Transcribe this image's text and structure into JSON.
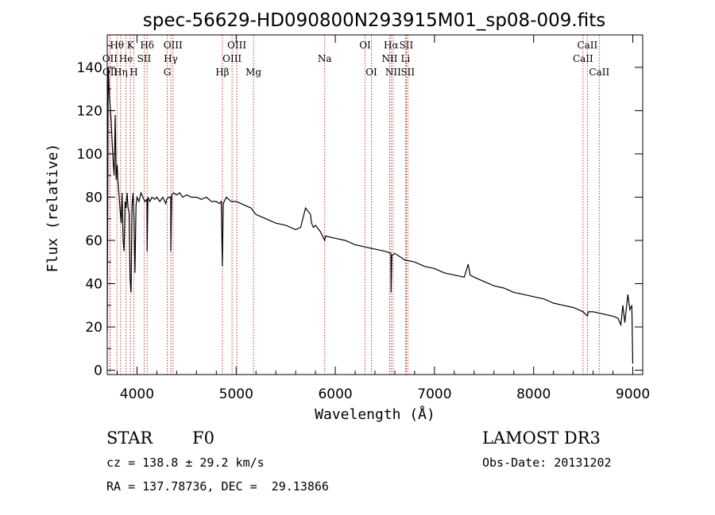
{
  "chart_data": {
    "type": "line",
    "title": "spec-56629-HD090800N293915M01_sp08-009.fits",
    "xlabel": "Wavelength (Å)",
    "ylabel": "Flux (relative)",
    "xlim": [
      3700,
      9100
    ],
    "ylim": [
      -2,
      155
    ],
    "xticks": [
      4000,
      5000,
      6000,
      7000,
      8000,
      9000
    ],
    "yticks": [
      0,
      20,
      40,
      60,
      80,
      100,
      120,
      140
    ],
    "grid": false,
    "series": [
      {
        "name": "flux",
        "x": [
          3700,
          3710,
          3720,
          3730,
          3740,
          3750,
          3760,
          3770,
          3780,
          3790,
          3800,
          3810,
          3820,
          3830,
          3840,
          3850,
          3860,
          3870,
          3880,
          3890,
          3900,
          3910,
          3920,
          3930,
          3940,
          3950,
          3960,
          3970,
          3980,
          3990,
          4000,
          4020,
          4040,
          4060,
          4080,
          4100,
          4102,
          4110,
          4130,
          4150,
          4180,
          4200,
          4230,
          4260,
          4290,
          4300,
          4320,
          4340,
          4341,
          4350,
          4370,
          4400,
          4430,
          4460,
          4500,
          4550,
          4600,
          4650,
          4700,
          4750,
          4800,
          4830,
          4850,
          4861,
          4870,
          4900,
          4950,
          5000,
          5050,
          5100,
          5150,
          5200,
          5300,
          5400,
          5500,
          5600,
          5650,
          5700,
          5750,
          5760,
          5780,
          5800,
          5850,
          5893,
          5900,
          6000,
          6100,
          6200,
          6300,
          6400,
          6500,
          6560,
          6563,
          6570,
          6600,
          6700,
          6800,
          6900,
          7000,
          7100,
          7200,
          7300,
          7340,
          7360,
          7400,
          7500,
          7600,
          7700,
          7800,
          7900,
          8000,
          8100,
          8200,
          8300,
          8400,
          8500,
          8542,
          8550,
          8600,
          8700,
          8800,
          8850,
          8880,
          8900,
          8920,
          8950,
          8970,
          8990,
          9000
        ],
        "values": [
          18,
          140,
          128,
          122,
          115,
          105,
          96,
          90,
          118,
          88,
          95,
          86,
          80,
          74,
          68,
          82,
          60,
          55,
          78,
          75,
          82,
          75,
          73,
          42,
          36,
          76,
          82,
          70,
          45,
          76,
          80,
          78,
          82,
          80,
          78,
          79,
          55,
          80,
          78,
          80,
          79,
          80,
          78,
          80,
          77,
          79,
          80,
          80,
          55,
          81,
          82,
          81,
          82,
          80,
          81,
          80,
          80,
          79,
          80,
          78,
          78,
          77,
          78,
          48,
          77,
          80,
          78,
          78,
          77,
          76,
          75,
          72,
          70,
          68,
          67,
          65,
          66,
          75,
          72,
          68,
          66,
          67,
          64,
          60,
          62,
          61,
          60,
          58,
          57,
          56,
          55,
          54,
          36,
          53,
          54,
          51,
          50,
          48,
          47,
          45,
          44,
          43,
          49,
          44,
          43,
          41,
          39,
          38,
          36,
          35,
          34,
          33,
          31,
          30,
          29,
          27,
          25,
          27,
          27,
          26,
          25,
          24,
          21,
          30,
          22,
          35,
          28,
          30,
          3
        ]
      }
    ],
    "spectral_lines": [
      {
        "label": "Hθ",
        "x": 3798,
        "row": 1
      },
      {
        "label": "OII",
        "x": 3727,
        "row": 2
      },
      {
        "label": "OII",
        "x": 3729,
        "row": 3
      },
      {
        "label": "Hη",
        "x": 3835,
        "row": 3
      },
      {
        "label": "He",
        "x": 3889,
        "row": 2
      },
      {
        "label": "K",
        "x": 3934,
        "row": 1
      },
      {
        "label": "H",
        "x": 3968,
        "row": 3
      },
      {
        "label": "SII",
        "x": 4072,
        "row": 2
      },
      {
        "label": "Hδ",
        "x": 4102,
        "row": 1
      },
      {
        "label": "OIII",
        "x": 4363,
        "row": 1
      },
      {
        "label": "Hγ",
        "x": 4341,
        "row": 2
      },
      {
        "label": "G",
        "x": 4305,
        "row": 3
      },
      {
        "label": "Hβ",
        "x": 4861,
        "row": 3
      },
      {
        "label": "OIII",
        "x": 5007,
        "row": 1
      },
      {
        "label": "OIII",
        "x": 4959,
        "row": 2
      },
      {
        "label": "Mg",
        "x": 5175,
        "row": 3
      },
      {
        "label": "Na",
        "x": 5893,
        "row": 2
      },
      {
        "label": "OI",
        "x": 6300,
        "row": 1
      },
      {
        "label": "OI",
        "x": 6364,
        "row": 3
      },
      {
        "label": "Hα",
        "x": 6563,
        "row": 1
      },
      {
        "label": "NII",
        "x": 6548,
        "row": 2
      },
      {
        "label": "NII",
        "x": 6583,
        "row": 3
      },
      {
        "label": "SII",
        "x": 6716,
        "row": 1
      },
      {
        "label": "Li",
        "x": 6708,
        "row": 2
      },
      {
        "label": "SII",
        "x": 6731,
        "row": 3
      },
      {
        "label": "CaII",
        "x": 8542,
        "row": 1
      },
      {
        "label": "CaII",
        "x": 8498,
        "row": 2
      },
      {
        "label": "CaII",
        "x": 8662,
        "row": 3
      }
    ]
  },
  "info": {
    "object_class": "STAR",
    "subclass": "F0",
    "survey": "LAMOST DR3",
    "redshift": "cz = 138.8 ± 29.2 km/s",
    "obs_date": "Obs-Date: 20131202",
    "coords": "RA = 137.78736, DEC =  29.13866"
  },
  "colors": {
    "line_markers": "#c0392b",
    "spectrum": "#000000"
  }
}
